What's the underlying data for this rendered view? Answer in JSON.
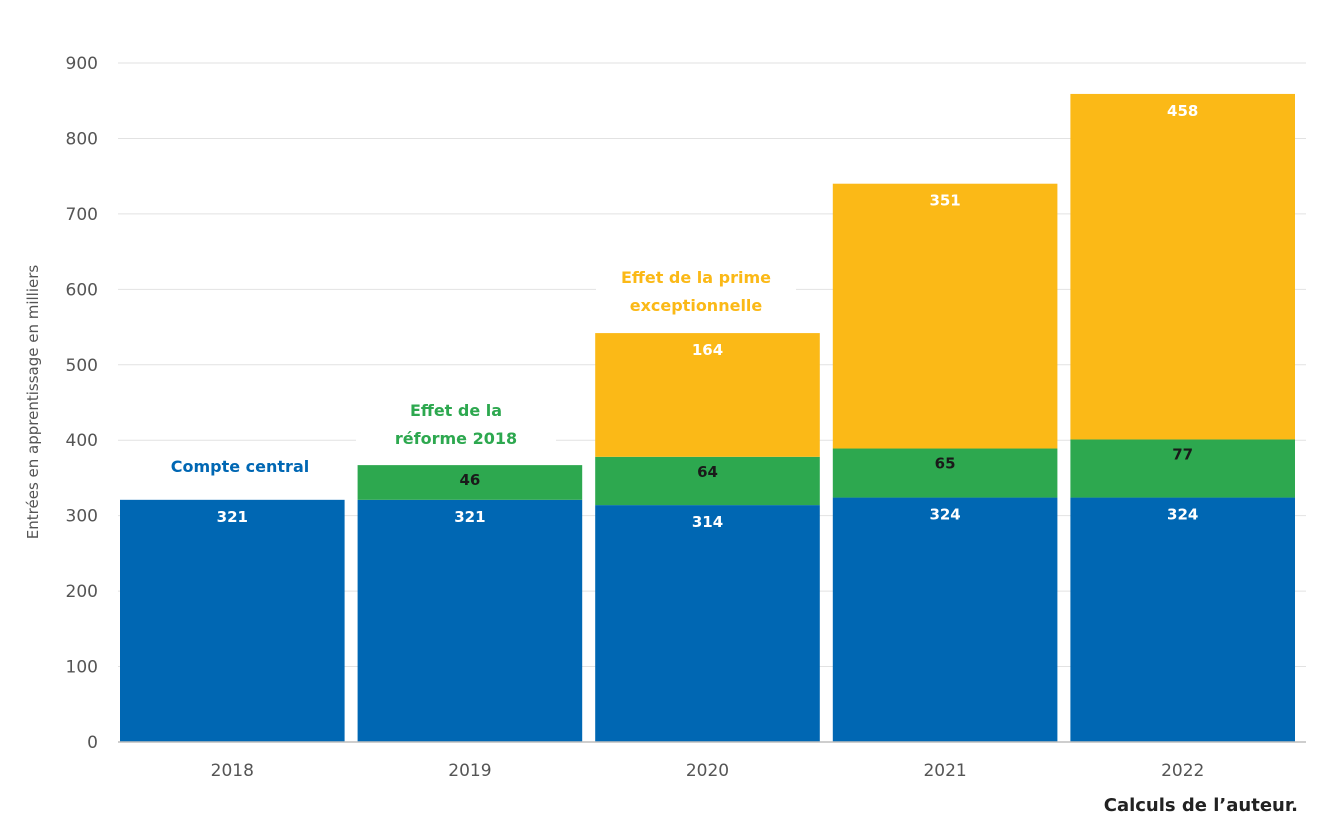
{
  "chart_data": {
    "type": "bar",
    "stacked": true,
    "categories": [
      "2018",
      "2019",
      "2020",
      "2021",
      "2022"
    ],
    "series": [
      {
        "values": [
          321,
          321,
          314,
          324,
          324
        ],
        "color": "#0067b3",
        "label_color": "#ffffff"
      },
      {
        "values": [
          0,
          46,
          64,
          65,
          77
        ],
        "color": "#2da84f",
        "label_color": "#1a1a1a"
      },
      {
        "values": [
          0,
          0,
          164,
          351,
          458
        ],
        "color": "#fbb917",
        "label_color": "#ffffff"
      }
    ],
    "ylabel": "Entrées en apprentissage en milliers",
    "ylim": [
      0,
      900
    ],
    "yticks": [
      0,
      100,
      200,
      300,
      400,
      500,
      600,
      700,
      800,
      900
    ],
    "grid": true,
    "annotations": [
      {
        "lines": [
          "Compte central"
        ],
        "color": "#0067b3"
      },
      {
        "lines": [
          "Effet de la",
          "réforme 2018"
        ],
        "color": "#2da84f"
      },
      {
        "lines": [
          "Effet de la prime",
          "exceptionnelle"
        ],
        "color": "#fbb917"
      }
    ]
  },
  "source_note": "Calculs de l’auteur."
}
